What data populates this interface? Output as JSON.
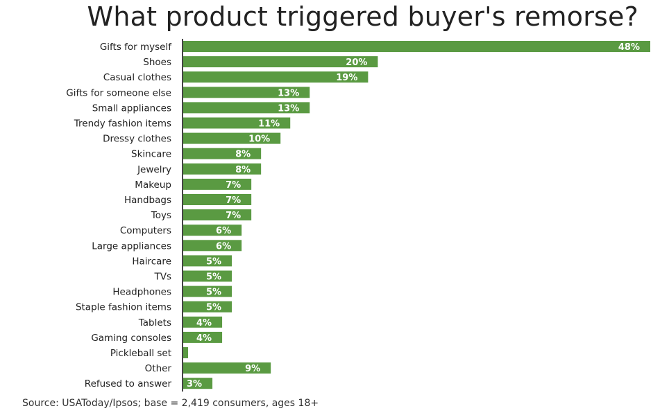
{
  "chart_data": {
    "type": "bar",
    "orientation": "horizontal",
    "title": "What product triggered buyer's remorse?",
    "xlabel": "",
    "ylabel": "",
    "xlim": [
      0,
      48
    ],
    "grid": false,
    "bar_color": "#5a9a42",
    "label_color": "#ffffff",
    "categories": [
      "Gifts for myself",
      "Shoes",
      "Casual clothes",
      "Gifts for someone else",
      "Small appliances",
      "Trendy fashion items",
      "Dressy clothes",
      "Skincare",
      "Jewelry",
      "Makeup",
      "Handbags",
      "Toys",
      "Computers",
      "Large appliances",
      "Haircare",
      "TVs",
      "Headphones",
      "Staple fashion items",
      "Tablets",
      "Gaming consoles",
      "Pickleball set",
      "Other",
      "Refused to answer"
    ],
    "values": [
      48,
      20,
      19,
      13,
      13,
      11,
      10,
      8,
      8,
      7,
      7,
      7,
      6,
      6,
      5,
      5,
      5,
      5,
      4,
      4,
      0.5,
      9,
      3
    ],
    "data_labels": [
      "48%",
      "20%",
      "19%",
      "13%",
      "13%",
      "11%",
      "10%",
      "8%",
      "8%",
      "7%",
      "7%",
      "7%",
      "6%",
      "6%",
      "5%",
      "5%",
      "5%",
      "5%",
      "4%",
      "4%",
      "",
      "9%",
      "3%"
    ]
  },
  "source": "Source: USAToday/Ipsos; base = 2,419 consumers, ages 18+"
}
